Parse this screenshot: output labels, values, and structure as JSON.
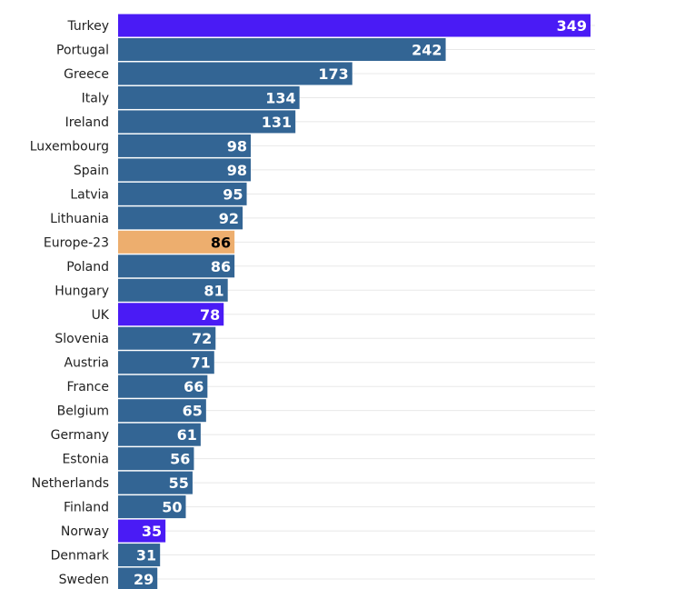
{
  "chart_data": {
    "type": "bar",
    "orientation": "horizontal",
    "categories": [
      "Turkey",
      "Portugal",
      "Greece",
      "Italy",
      "Ireland",
      "Luxembourg",
      "Spain",
      "Latvia",
      "Lithuania",
      "Europe-23",
      "Poland",
      "Hungary",
      "UK",
      "Slovenia",
      "Austria",
      "France",
      "Belgium",
      "Germany",
      "Estonia",
      "Netherlands",
      "Finland",
      "Norway",
      "Denmark",
      "Sweden"
    ],
    "values": [
      349,
      242,
      173,
      134,
      131,
      98,
      98,
      95,
      92,
      86,
      86,
      81,
      78,
      72,
      71,
      66,
      65,
      61,
      56,
      55,
      50,
      35,
      31,
      29
    ],
    "highlight": [
      "normal",
      "normal",
      "normal",
      "normal",
      "normal",
      "normal",
      "normal",
      "normal",
      "normal",
      "average",
      "normal",
      "normal",
      "normal",
      "normal",
      "normal",
      "normal",
      "normal",
      "normal",
      "normal",
      "normal",
      "normal",
      "normal",
      "normal",
      "normal"
    ],
    "highlight_override": {
      "Turkey": "focus",
      "UK": "focus",
      "Norway": "focus"
    },
    "colors": {
      "normal": "#336594",
      "focus": "#4a1bf5",
      "average": "#edae6e"
    },
    "value_label_colors": {
      "normal": "#ffffff",
      "focus": "#ffffff",
      "average": "#000000"
    },
    "xlim": [
      0,
      349
    ],
    "grid": true,
    "title": "",
    "xlabel": "",
    "ylabel": ""
  }
}
